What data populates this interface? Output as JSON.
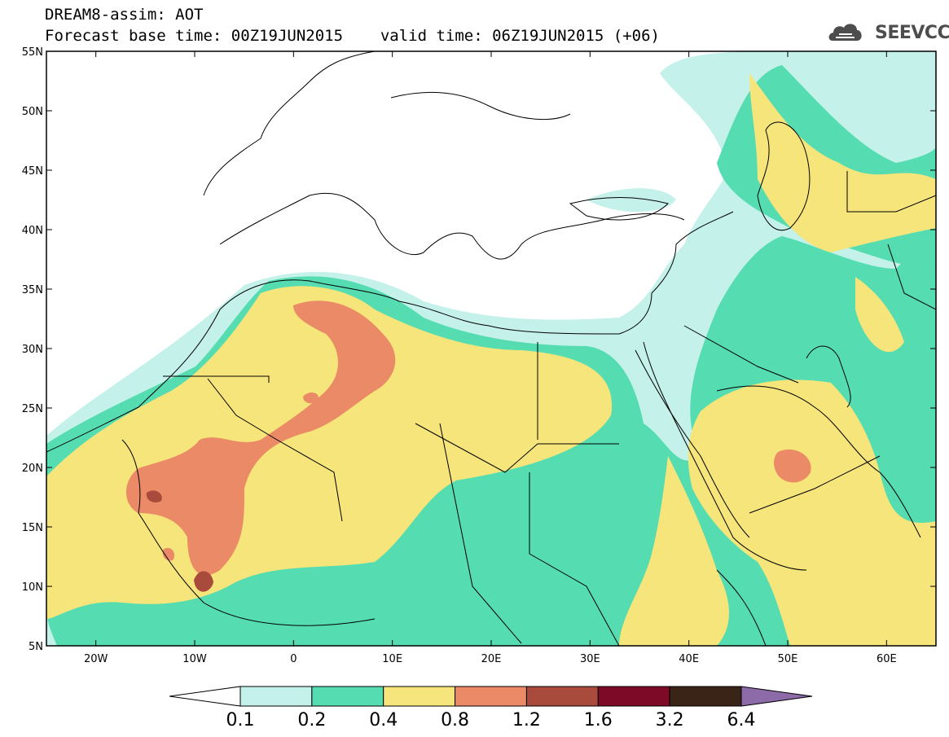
{
  "header": {
    "title": "DREAM8-assim: AOT",
    "base_time_label": "Forecast base time: 00Z19JUN2015",
    "valid_time_label": "valid time: 06Z19JUN2015 (+06)"
  },
  "logo": {
    "text": "SEEVCCC",
    "icon": "cloud-logo-icon"
  },
  "map": {
    "lon_range": [
      -25,
      65
    ],
    "lat_range": [
      5,
      55
    ],
    "lat_ticks": [
      {
        "value": 55,
        "label": "55N"
      },
      {
        "value": 50,
        "label": "50N"
      },
      {
        "value": 45,
        "label": "45N"
      },
      {
        "value": 40,
        "label": "40N"
      },
      {
        "value": 35,
        "label": "35N"
      },
      {
        "value": 30,
        "label": "30N"
      },
      {
        "value": 25,
        "label": "25N"
      },
      {
        "value": 20,
        "label": "20N"
      },
      {
        "value": 15,
        "label": "15N"
      },
      {
        "value": 10,
        "label": "10N"
      },
      {
        "value": 5,
        "label": "5N"
      }
    ],
    "lon_ticks": [
      {
        "value": -20,
        "label": "20W"
      },
      {
        "value": -10,
        "label": "10W"
      },
      {
        "value": 0,
        "label": "0"
      },
      {
        "value": 10,
        "label": "10E"
      },
      {
        "value": 20,
        "label": "20E"
      },
      {
        "value": 30,
        "label": "30E"
      },
      {
        "value": 40,
        "label": "40E"
      },
      {
        "value": 50,
        "label": "50E"
      },
      {
        "value": 60,
        "label": "60E"
      }
    ]
  },
  "colorbar": {
    "boundaries": [
      "0.1",
      "0.2",
      "0.4",
      "0.8",
      "1.2",
      "1.6",
      "3.2",
      "6.4"
    ],
    "colors": [
      "#ffffff",
      "#c4f1ea",
      "#55dcb1",
      "#f6e57a",
      "#ea8a66",
      "#a84a3c",
      "#7d0a26",
      "#3a2417",
      "#8d6aa8"
    ]
  },
  "fields": {
    "levels": [
      {
        "min": 0.1,
        "color": "#c4f1ea"
      },
      {
        "min": 0.2,
        "color": "#55dcb1"
      },
      {
        "min": 0.4,
        "color": "#f6e57a"
      },
      {
        "min": 0.8,
        "color": "#ea8a66"
      },
      {
        "min": 1.2,
        "color": "#a84a3c"
      }
    ]
  }
}
